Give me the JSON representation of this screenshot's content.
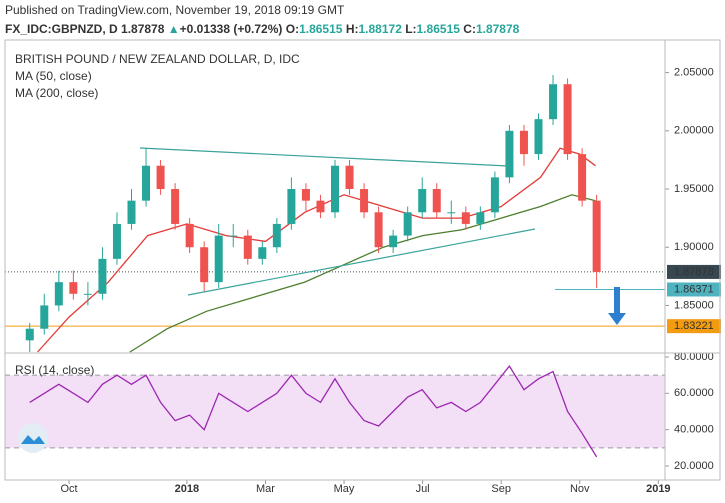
{
  "chart_data": {
    "type": "candlestick",
    "header": {
      "published": "Published on TradingView.com, November 19, 2018 09:19 GMT",
      "symbol": "FX_IDC:GBPNZD, D",
      "last": "1.87878",
      "arrow": "▲",
      "change": "+0.01338 (+0.72%)",
      "o_label": "O:",
      "o": "1.86515",
      "h_label": "H:",
      "h": "1.88172",
      "l_label": "L:",
      "l": "1.86515",
      "c_label": "C:",
      "c": "1.87878"
    },
    "legend": [
      "BRITISH POUND / NEW ZEALAND DOLLAR, D, IDC",
      "MA (50, close)",
      "MA (200, close)"
    ],
    "rsi_title": "RSI (14, close)",
    "up_color": "#26a69a",
    "down_color": "#ef5350",
    "x": [
      -1,
      -0.63,
      -0.26,
      0.11,
      0.48,
      0.85,
      1.22,
      1.59,
      1.96,
      2.33,
      2.7,
      3.07,
      3.44,
      3.81,
      4.18,
      4.55,
      4.92,
      5.29,
      5.66,
      6.03,
      6.4,
      6.77,
      7.14,
      7.51,
      7.88,
      8.25,
      8.62,
      8.99,
      9.36,
      9.73,
      10.1,
      10.47,
      10.84,
      11.21,
      11.58,
      11.95,
      12.32,
      12.69,
      13.06,
      13.43
    ],
    "open": [
      1.82,
      1.83,
      1.85,
      1.87,
      1.86,
      1.86,
      1.89,
      1.92,
      1.94,
      1.97,
      1.95,
      1.92,
      1.9,
      1.87,
      1.91,
      1.91,
      1.89,
      1.9,
      1.92,
      1.95,
      1.94,
      1.93,
      1.97,
      1.95,
      1.93,
      1.9,
      1.91,
      1.93,
      1.95,
      1.93,
      1.93,
      1.92,
      1.93,
      1.96,
      2.0,
      1.98,
      2.01,
      2.04,
      1.98,
      1.94
    ],
    "high": [
      1.835,
      1.86,
      1.88,
      1.88,
      1.87,
      1.9,
      1.93,
      1.95,
      1.985,
      1.975,
      1.955,
      1.925,
      1.905,
      1.92,
      1.92,
      1.915,
      1.905,
      1.925,
      1.96,
      1.955,
      1.945,
      1.975,
      1.975,
      1.955,
      1.935,
      1.915,
      1.935,
      1.96,
      1.955,
      1.94,
      1.935,
      1.935,
      1.965,
      2.005,
      2.005,
      2.015,
      2.048,
      2.045,
      1.985,
      1.945
    ],
    "low": [
      1.81,
      1.825,
      1.845,
      1.855,
      1.85,
      1.855,
      1.885,
      1.915,
      1.935,
      1.945,
      1.915,
      1.895,
      1.862,
      1.865,
      1.9,
      1.885,
      1.885,
      1.895,
      1.915,
      1.93,
      1.925,
      1.925,
      1.945,
      1.925,
      1.895,
      1.895,
      1.905,
      1.925,
      1.925,
      1.92,
      1.915,
      1.915,
      1.925,
      1.955,
      1.97,
      1.975,
      2.005,
      1.975,
      1.935,
      1.865
    ],
    "close": [
      1.83,
      1.85,
      1.87,
      1.86,
      1.86,
      1.89,
      1.92,
      1.94,
      1.97,
      1.95,
      1.92,
      1.9,
      1.87,
      1.91,
      1.91,
      1.89,
      1.9,
      1.92,
      1.95,
      1.94,
      1.93,
      1.97,
      1.95,
      1.93,
      1.9,
      1.91,
      1.93,
      1.95,
      1.93,
      1.93,
      1.92,
      1.93,
      1.96,
      2.0,
      1.98,
      2.01,
      2.04,
      1.98,
      1.94,
      1.87878
    ],
    "ma50": {
      "name": "MA (50, close)",
      "color": "#e53935",
      "x": [
        -0.8,
        0,
        1,
        2,
        3,
        4,
        5,
        6,
        7,
        8,
        9,
        10,
        11,
        12,
        12.5,
        13,
        13.4
      ],
      "values": [
        1.81,
        1.84,
        1.87,
        1.91,
        1.92,
        1.91,
        1.905,
        1.93,
        1.945,
        1.935,
        1.925,
        1.925,
        1.935,
        1.96,
        1.985,
        1.98,
        1.97
      ]
    },
    "ma200": {
      "name": "MA (200, close)",
      "color": "#4c7f2f",
      "x": [
        1.55,
        2.5,
        3.5,
        5,
        6,
        7,
        8,
        9,
        10,
        11,
        12,
        12.8,
        13.4
      ],
      "values": [
        1.81,
        1.83,
        1.845,
        1.86,
        1.87,
        1.885,
        1.9,
        1.91,
        1.915,
        1.925,
        1.935,
        1.945,
        1.94
      ]
    },
    "rsi": {
      "color": "#9c27b0",
      "values": [
        55,
        60,
        65,
        60,
        55,
        65,
        70,
        65,
        70,
        55,
        45,
        48,
        40,
        60,
        55,
        50,
        55,
        60,
        70,
        60,
        55,
        68,
        55,
        45,
        42,
        50,
        58,
        62,
        52,
        55,
        50,
        55,
        65,
        75,
        62,
        68,
        72,
        50,
        38,
        25
      ]
    },
    "rsi_band": [
      30,
      70
    ],
    "xlim": [
      -1.63,
      15.17
    ],
    "xticks": [
      {
        "value": 0,
        "label": "Oct"
      },
      {
        "value": 3,
        "label": "2018"
      },
      {
        "value": 5,
        "label": "Mar"
      },
      {
        "value": 7,
        "label": "May"
      },
      {
        "value": 9,
        "label": "Jul"
      },
      {
        "value": 11,
        "label": "Sep"
      },
      {
        "value": 13,
        "label": "Nov"
      },
      {
        "value": 15,
        "label": "2019"
      }
    ],
    "ylim": [
      1.81,
      2.078
    ],
    "yticks": [
      {
        "value": 2.05,
        "label": "2.05000"
      },
      {
        "value": 2.0,
        "label": "2.00000"
      },
      {
        "value": 1.95,
        "label": "1.95000"
      },
      {
        "value": 1.9,
        "label": "1.90000"
      },
      {
        "value": 1.85,
        "label": "1.85000"
      }
    ],
    "rsi_ylim": [
      12.3,
      81.1
    ],
    "rsi_yticks": [
      {
        "value": 80,
        "label": "80.0000"
      },
      {
        "value": 60,
        "label": "60.0000"
      },
      {
        "value": 40,
        "label": "40.0000"
      },
      {
        "value": 20,
        "label": "20.0000"
      }
    ],
    "price_lines": [
      {
        "value": 1.87878,
        "color": "#37474f",
        "style": "dotted"
      },
      {
        "value": 1.86371,
        "color": "#4fb3bf",
        "style": "short"
      },
      {
        "value": 1.83221,
        "color": "#f39c12",
        "style": "solid"
      }
    ]
  }
}
